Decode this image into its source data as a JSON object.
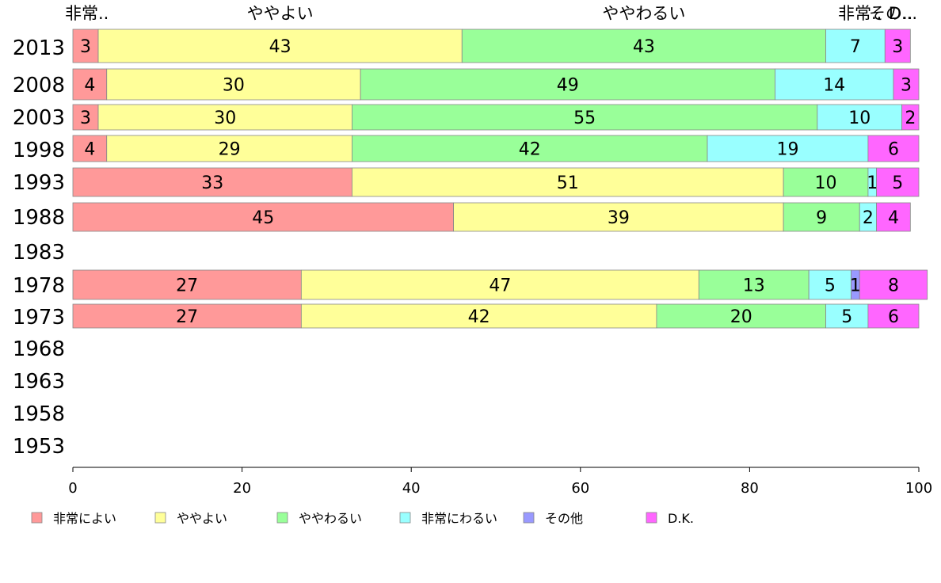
{
  "chart_data": {
    "type": "bar",
    "orientation": "horizontal",
    "stacked": true,
    "categories": [
      "2013",
      "2008",
      "2003",
      "1998",
      "1993",
      "1988",
      "1983",
      "1978",
      "1973",
      "1968",
      "1963",
      "1958",
      "1953"
    ],
    "series": [
      {
        "name": "非常によい",
        "short_label": "非常..",
        "color": "#ff9999",
        "values": [
          3,
          4,
          3,
          4,
          33,
          45,
          null,
          27,
          27,
          null,
          null,
          null,
          null
        ]
      },
      {
        "name": "ややよい",
        "short_label": "ややよい",
        "color": "#ffff99",
        "values": [
          43,
          30,
          30,
          29,
          51,
          39,
          null,
          47,
          42,
          null,
          null,
          null,
          null
        ]
      },
      {
        "name": "ややわるい",
        "short_label": "ややわるい",
        "color": "#99ff99",
        "values": [
          43,
          49,
          55,
          42,
          10,
          9,
          null,
          13,
          20,
          null,
          null,
          null,
          null
        ]
      },
      {
        "name": "非常にわるい",
        "short_label": "非常..",
        "color": "#99ffff",
        "values": [
          7,
          14,
          10,
          19,
          1,
          2,
          null,
          5,
          5,
          null,
          null,
          null,
          null
        ]
      },
      {
        "name": "その他",
        "short_label": "その..",
        "color": "#9999ff",
        "values": [
          0,
          0,
          0,
          0,
          0,
          0,
          null,
          1,
          0,
          null,
          null,
          null,
          null
        ]
      },
      {
        "name": "D.K.",
        "short_label": "D...",
        "color": "#ff66ff",
        "values": [
          3,
          3,
          2,
          6,
          5,
          4,
          null,
          8,
          6,
          null,
          null,
          null,
          null
        ]
      }
    ],
    "xlim": [
      0,
      100
    ],
    "xticks": [
      0,
      20,
      40,
      60,
      80,
      100
    ],
    "legend": "bottom"
  }
}
